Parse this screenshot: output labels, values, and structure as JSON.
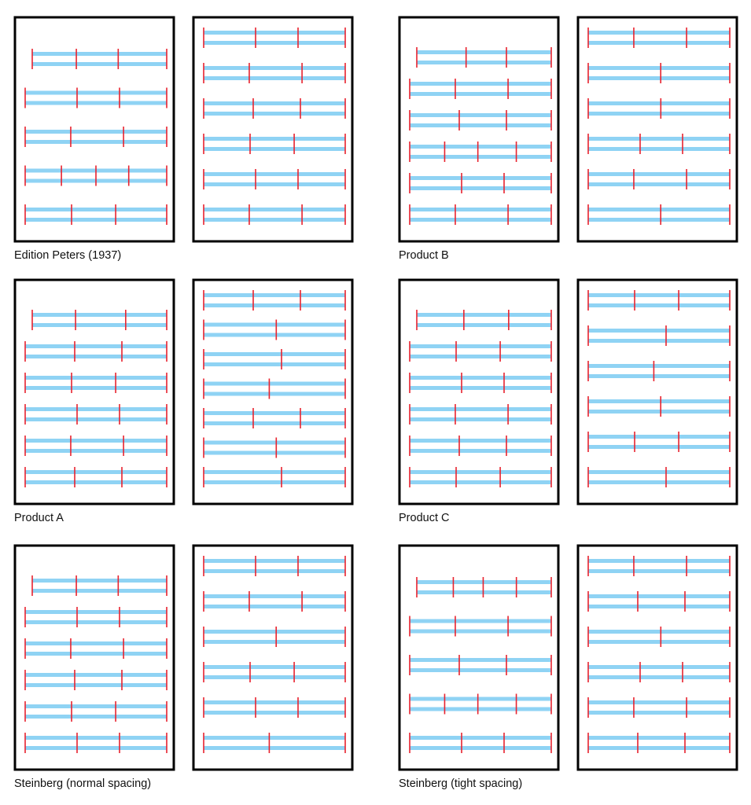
{
  "colors": {
    "staff": "#8fd3f4",
    "barline": "#e8222e",
    "frame": "#000000",
    "page": "#ffffff",
    "text": "#111111"
  },
  "samples": [
    {
      "label": "Edition Peters (1937)",
      "pages": [
        {
          "systems": [
            {
              "indent": true,
              "measures": 3
            },
            {
              "measures": 3
            },
            {
              "measures": 3
            },
            {
              "measures": 4
            },
            {
              "measures": 3
            }
          ]
        },
        {
          "systems": [
            {
              "measures": 3
            },
            {
              "measures": 3
            },
            {
              "measures": 3
            },
            {
              "measures": 3
            },
            {
              "measures": 3
            },
            {
              "measures": 3
            }
          ]
        }
      ]
    },
    {
      "label": "Product B",
      "pages": [
        {
          "systems": [
            {
              "indent": true,
              "measures": 3
            },
            {
              "measures": 3
            },
            {
              "measures": 3
            },
            {
              "measures": 4
            },
            {
              "measures": 3
            },
            {
              "measures": 3
            }
          ]
        },
        {
          "systems": [
            {
              "measures": 3
            },
            {
              "measures": 2
            },
            {
              "measures": 2
            },
            {
              "measures": 3
            },
            {
              "measures": 3
            },
            {
              "measures": 2
            }
          ]
        }
      ]
    },
    {
      "label": "Product A",
      "pages": [
        {
          "systems": [
            {
              "indent": true,
              "measures": 3
            },
            {
              "measures": 3
            },
            {
              "measures": 3
            },
            {
              "measures": 3
            },
            {
              "measures": 3
            },
            {
              "measures": 3
            }
          ]
        },
        {
          "systems": [
            {
              "measures": 3
            },
            {
              "measures": 2
            },
            {
              "measures": 2
            },
            {
              "measures": 2
            },
            {
              "measures": 3
            },
            {
              "measures": 2
            },
            {
              "measures": 2
            }
          ]
        }
      ]
    },
    {
      "label": "Product C",
      "pages": [
        {
          "systems": [
            {
              "indent": true,
              "measures": 3
            },
            {
              "measures": 3
            },
            {
              "measures": 3
            },
            {
              "measures": 3
            },
            {
              "measures": 3
            },
            {
              "measures": 3
            }
          ]
        },
        {
          "systems": [
            {
              "measures": 3
            },
            {
              "measures": 2
            },
            {
              "measures": 2
            },
            {
              "measures": 2
            },
            {
              "measures": 3
            },
            {
              "measures": 2
            }
          ]
        }
      ]
    },
    {
      "label": "Steinberg (normal spacing)",
      "pages": [
        {
          "systems": [
            {
              "indent": true,
              "measures": 3
            },
            {
              "measures": 3
            },
            {
              "measures": 3
            },
            {
              "measures": 3
            },
            {
              "measures": 3
            },
            {
              "measures": 3
            }
          ]
        },
        {
          "systems": [
            {
              "measures": 3
            },
            {
              "measures": 3
            },
            {
              "measures": 2
            },
            {
              "measures": 3
            },
            {
              "measures": 3
            },
            {
              "measures": 2
            }
          ]
        }
      ]
    },
    {
      "label": "Steinberg (tight spacing)",
      "pages": [
        {
          "systems": [
            {
              "indent": true,
              "measures": 4
            },
            {
              "measures": 3
            },
            {
              "measures": 3
            },
            {
              "measures": 4
            },
            {
              "measures": 3
            }
          ]
        },
        {
          "systems": [
            {
              "measures": 3
            },
            {
              "measures": 3
            },
            {
              "measures": 2
            },
            {
              "measures": 3
            },
            {
              "measures": 3
            },
            {
              "measures": 3
            }
          ]
        }
      ]
    }
  ]
}
